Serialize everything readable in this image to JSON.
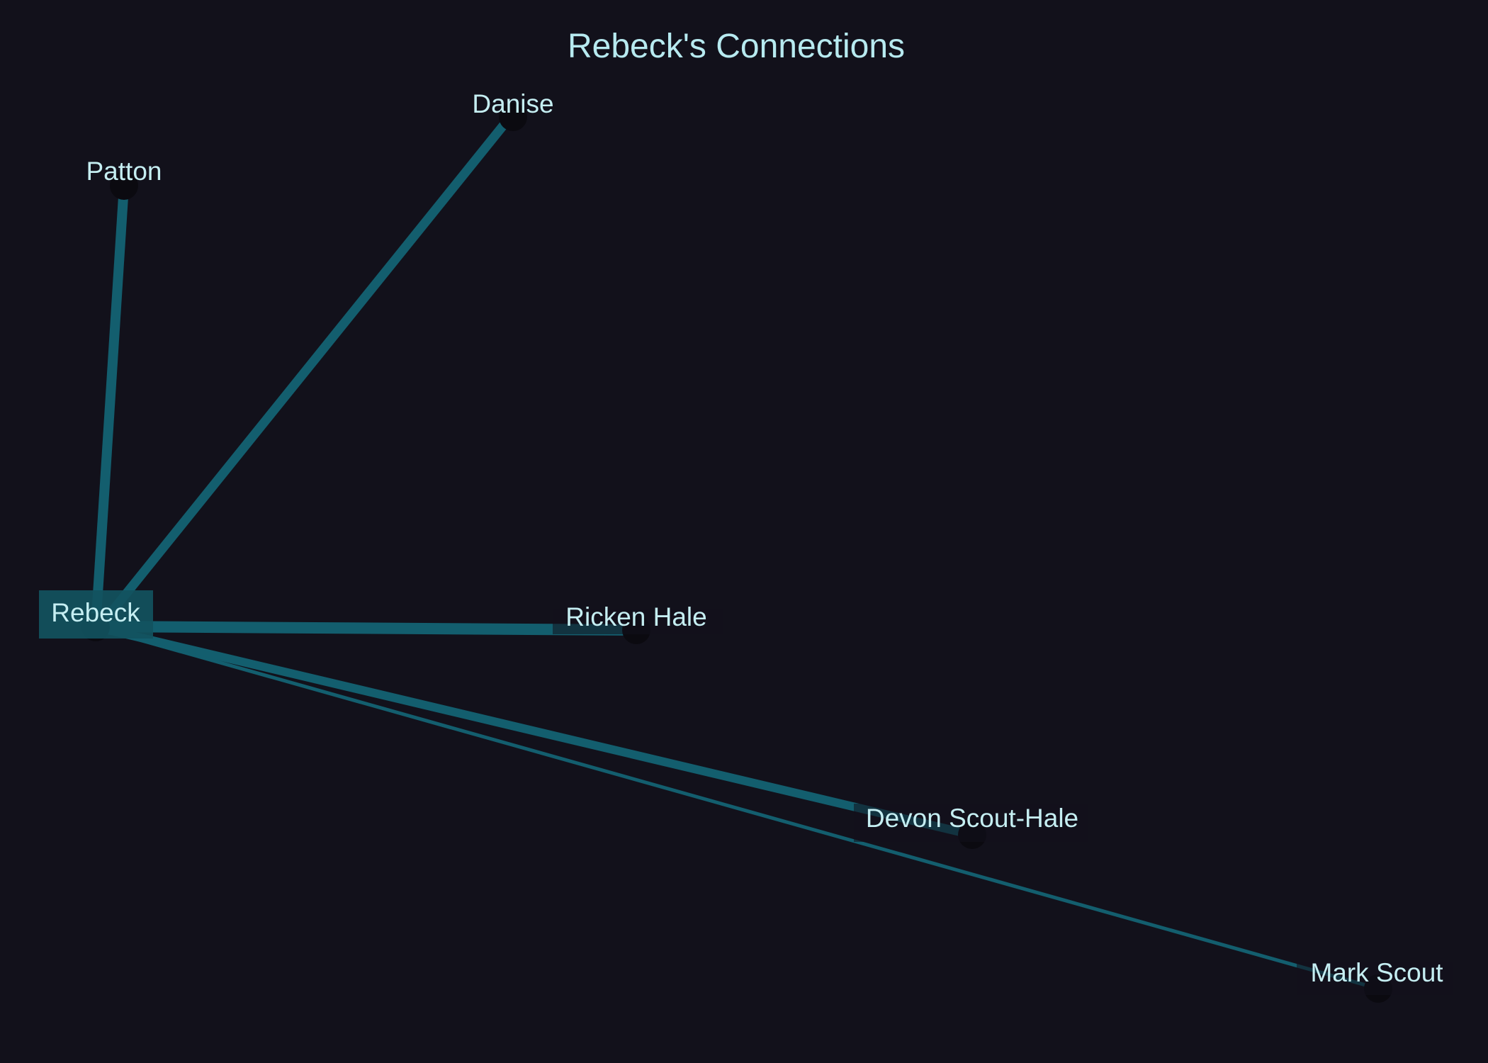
{
  "title": "Rebeck's Connections",
  "colors": {
    "background": "#12111b",
    "edge": "#135e6e",
    "label_text": "#c5eef2",
    "node": "#0b0a10",
    "center_box": "#12525e"
  },
  "graph": {
    "center": "Rebeck",
    "nodes": [
      {
        "id": "rebeck",
        "label": "Rebeck",
        "is_center": true
      },
      {
        "id": "patton",
        "label": "Patton"
      },
      {
        "id": "danise",
        "label": "Danise"
      },
      {
        "id": "ricken",
        "label": "Ricken Hale"
      },
      {
        "id": "devon",
        "label": "Devon Scout-Hale"
      },
      {
        "id": "mark",
        "label": "Mark Scout"
      }
    ],
    "edges": [
      {
        "from": "rebeck",
        "to": "patton",
        "weight": "strong"
      },
      {
        "from": "rebeck",
        "to": "danise",
        "weight": "strong"
      },
      {
        "from": "rebeck",
        "to": "ricken",
        "weight": "strong"
      },
      {
        "from": "rebeck",
        "to": "devon",
        "weight": "strong"
      },
      {
        "from": "rebeck",
        "to": "mark",
        "weight": "weak"
      }
    ]
  }
}
